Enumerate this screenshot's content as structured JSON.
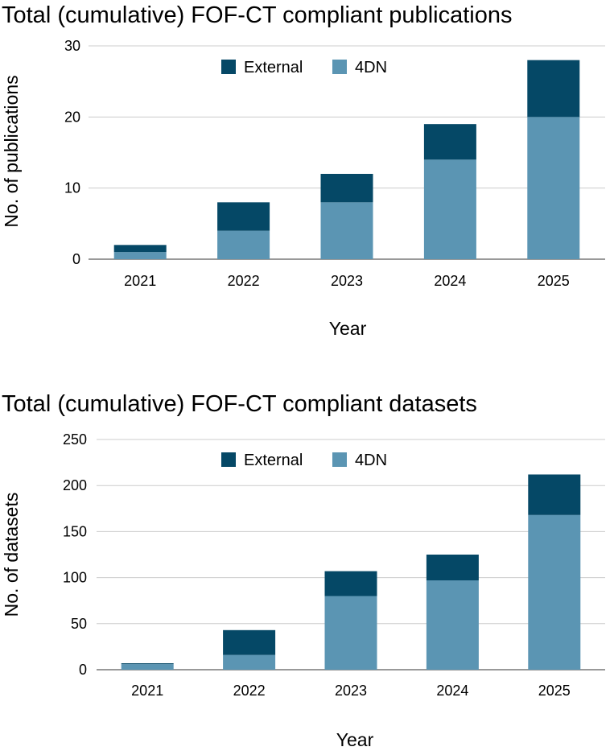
{
  "chart_data": [
    {
      "type": "bar",
      "stacked": true,
      "title": "Total (cumulative) FOF-CT compliant publications",
      "xlabel": "Year",
      "ylabel": "No. of publications",
      "ylim": [
        0,
        30
      ],
      "yticks": [
        0,
        10,
        20,
        30
      ],
      "categories": [
        "2021",
        "2022",
        "2023",
        "2024",
        "2025"
      ],
      "series": [
        {
          "name": "4DN",
          "color": "#5b95b3",
          "values": [
            1,
            4,
            8,
            14,
            20
          ]
        },
        {
          "name": "External",
          "color": "#054866",
          "values": [
            1,
            4,
            4,
            5,
            8
          ]
        }
      ],
      "legend": [
        {
          "name": "External",
          "color": "#054866"
        },
        {
          "name": "4DN",
          "color": "#5b95b3"
        }
      ],
      "legend_position": "top-center",
      "grid": true
    },
    {
      "type": "bar",
      "stacked": true,
      "title": "Total (cumulative) FOF-CT compliant datasets",
      "xlabel": "Year",
      "ylabel": "No. of datasets",
      "ylim": [
        0,
        250
      ],
      "yticks": [
        0,
        50,
        100,
        150,
        200,
        250
      ],
      "categories": [
        "2021",
        "2022",
        "2023",
        "2024",
        "2025"
      ],
      "series": [
        {
          "name": "4DN",
          "color": "#5b95b3",
          "values": [
            6,
            16,
            80,
            97,
            168
          ]
        },
        {
          "name": "External",
          "color": "#054866",
          "values": [
            1,
            27,
            27,
            28,
            44
          ]
        }
      ],
      "legend": [
        {
          "name": "External",
          "color": "#054866"
        },
        {
          "name": "4DN",
          "color": "#5b95b3"
        }
      ],
      "legend_position": "top-center",
      "grid": true
    }
  ]
}
